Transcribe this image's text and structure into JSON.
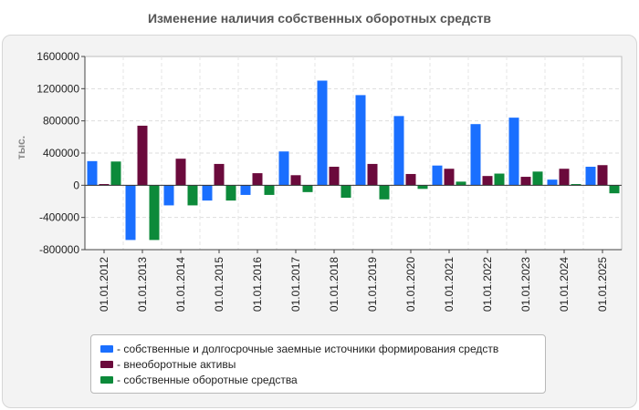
{
  "chart_data": {
    "type": "bar",
    "title": "Изменение наличия собственных оборотных средств",
    "ylabel": "тыс.",
    "ylim": [
      -800000,
      1600000
    ],
    "yticks": [
      1600000,
      1200000,
      800000,
      400000,
      0,
      -400000,
      -800000
    ],
    "yticklabels": [
      "1600000",
      "1200000",
      "800000",
      "400000",
      "0",
      "-400000",
      "-800000"
    ],
    "grid": true,
    "legend_position": "bottom",
    "categories": [
      "01.01.2012",
      "01.01.2013",
      "01.01.2014",
      "01.01.2015",
      "01.01.2016",
      "01.01.2017",
      "01.01.2018",
      "01.01.2019",
      "01.01.2020",
      "01.01.2021",
      "01.01.2022",
      "01.01.2023",
      "01.01.2024",
      "01.01.2025"
    ],
    "series": [
      {
        "name": "- собственные и долгосрочные заемные источники формирования средств",
        "color": "#1a6fff",
        "values": [
          300000,
          -680000,
          -250000,
          -190000,
          -120000,
          420000,
          1300000,
          1120000,
          860000,
          245000,
          760000,
          840000,
          70000,
          230000
        ]
      },
      {
        "name": "- внеоборотные активы",
        "color": "#6b0a3c",
        "values": [
          15000,
          740000,
          330000,
          265000,
          150000,
          125000,
          230000,
          265000,
          140000,
          205000,
          115000,
          105000,
          205000,
          250000
        ]
      },
      {
        "name": "- собственные оборотные средства",
        "color": "#0c8a3a",
        "values": [
          295000,
          -680000,
          -250000,
          -190000,
          -120000,
          -85000,
          -155000,
          -175000,
          -45000,
          45000,
          145000,
          170000,
          15000,
          -100000
        ]
      }
    ]
  }
}
